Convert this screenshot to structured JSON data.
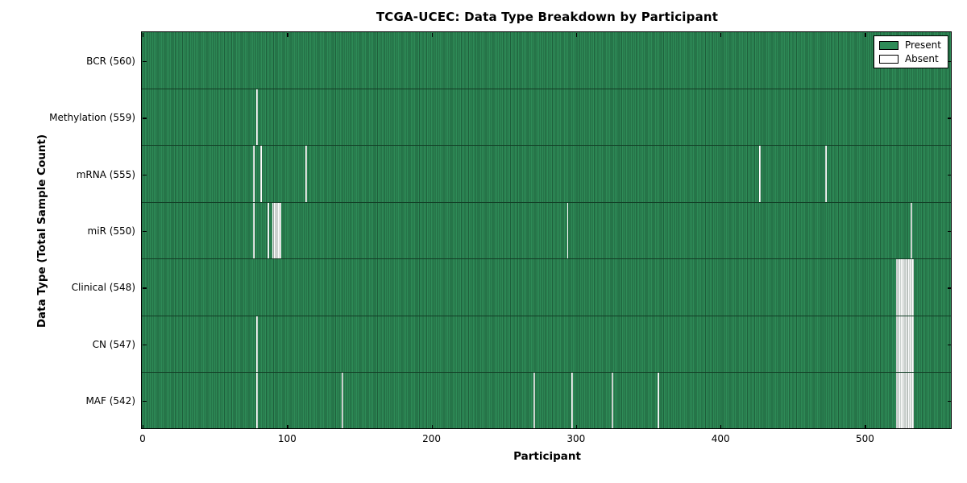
{
  "figure": {
    "background": "#ffffff"
  },
  "chart_data": {
    "type": "heatmap",
    "title": "TCGA-UCEC: Data Type Breakdown by Participant",
    "xlabel": "Participant",
    "ylabel": "Data Type (Total Sample Count)",
    "x_ticks": [
      0,
      100,
      200,
      300,
      400,
      500
    ],
    "x_range": [
      0,
      560
    ],
    "n_participants": 560,
    "grid": false,
    "legend": {
      "position": "upper right",
      "items": [
        {
          "label": "Present",
          "color": "#2e8b57"
        },
        {
          "label": "Absent",
          "color": "#ffffff"
        }
      ]
    },
    "colors": {
      "present": "#2e8b57",
      "absent": "#ffffff",
      "cell_edge": "#10341f",
      "axis": "#000000"
    },
    "rows": [
      {
        "label": "BCR",
        "total": 560,
        "display": "BCR (560)",
        "absent": []
      },
      {
        "label": "Methylation",
        "total": 559,
        "display": "Methylation (559)",
        "absent": [
          79
        ]
      },
      {
        "label": "mRNA",
        "total": 555,
        "display": "mRNA (555)",
        "absent": [
          77,
          82,
          113,
          427,
          473
        ]
      },
      {
        "label": "miR",
        "total": 550,
        "display": "miR (550)",
        "absent": [
          77,
          87,
          90,
          91,
          92,
          93,
          94,
          95,
          294,
          532
        ]
      },
      {
        "label": "Clinical",
        "total": 548,
        "display": "Clinical (548)",
        "absent": [
          522,
          523,
          524,
          525,
          526,
          527,
          528,
          529,
          530,
          531,
          532,
          533
        ]
      },
      {
        "label": "CN",
        "total": 547,
        "display": "CN (547)",
        "absent": [
          79,
          522,
          523,
          524,
          525,
          526,
          527,
          528,
          529,
          530,
          531,
          532,
          533
        ]
      },
      {
        "label": "MAF",
        "total": 542,
        "display": "MAF (542)",
        "absent": [
          79,
          138,
          271,
          297,
          325,
          357,
          522,
          523,
          524,
          525,
          526,
          527,
          528,
          529,
          530,
          531,
          532,
          533
        ]
      }
    ]
  }
}
